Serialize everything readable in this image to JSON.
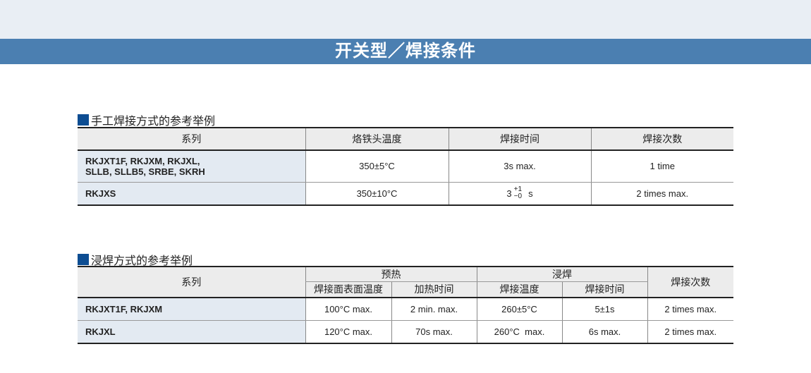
{
  "banner": {
    "title": "开关型／焊接条件"
  },
  "colors": {
    "title_bar": "#4b7fb1",
    "section_marker": "#0d4d92",
    "series_bg": "#e3eaf2"
  },
  "manual": {
    "title": "手工焊接方式的参考举例",
    "headers": [
      "系列",
      "烙铁头温度",
      "焊接时间",
      "焊接次数"
    ],
    "rows": [
      {
        "series_line1": "RKJXT1F, RKJXM, RKJXL,",
        "series_line2": "SLLB, SLLB5, SRBE, SKRH",
        "temp": "350±5°C",
        "time": "3s max.",
        "count": "1 time"
      },
      {
        "series_line1": "RKJXS",
        "temp": "350±10°C",
        "time_base": "3",
        "time_plus": "+1",
        "time_minus": "−0",
        "time_unit": "s",
        "count": "2 times max."
      }
    ]
  },
  "dip": {
    "title": "浸焊方式的参考举例",
    "headers": {
      "series": "系列",
      "preheat": "预热",
      "dip": "浸焊",
      "count": "焊接次数",
      "surface_temp": "焊接面表面温度",
      "heat_time": "加热时间",
      "solder_temp": "焊接温度",
      "solder_time": "焊接时间"
    },
    "rows": [
      {
        "series": "RKJXT1F, RKJXM",
        "surface_temp": "100°C max.",
        "heat_time": "2 min. max.",
        "solder_temp": "260±5°C",
        "solder_time": "5±1s",
        "count": "2 times max."
      },
      {
        "series": "RKJXL",
        "surface_temp": "120°C max.",
        "heat_time": "70s max.",
        "solder_temp": "260°C  max.",
        "solder_time": "6s max.",
        "count": "2 times max."
      }
    ]
  }
}
